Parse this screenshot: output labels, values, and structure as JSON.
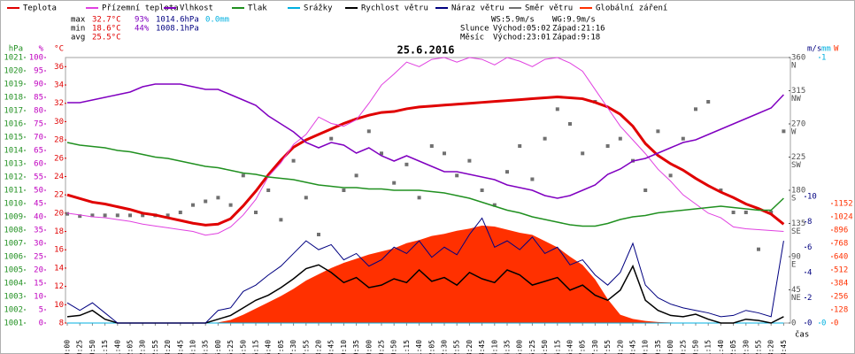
{
  "chart_data": {
    "type": "line",
    "title": "25.6.2016",
    "x_label": "čas",
    "categories": [
      "00:00",
      "00:25",
      "00:50",
      "01:15",
      "01:40",
      "02:05",
      "02:30",
      "02:55",
      "03:20",
      "03:45",
      "04:10",
      "04:35",
      "05:00",
      "05:25",
      "05:50",
      "06:15",
      "06:40",
      "07:05",
      "07:30",
      "07:55",
      "08:20",
      "08:45",
      "09:10",
      "09:35",
      "10:00",
      "10:25",
      "10:50",
      "11:15",
      "11:40",
      "12:05",
      "12:30",
      "12:55",
      "13:20",
      "13:45",
      "14:10",
      "14:35",
      "15:00",
      "15:25",
      "15:50",
      "16:15",
      "16:40",
      "17:05",
      "17:30",
      "17:55",
      "18:20",
      "18:45",
      "19:10",
      "19:35",
      "20:00",
      "20:25",
      "20:50",
      "21:15",
      "21:40",
      "22:05",
      "22:30",
      "22:55",
      "23:20",
      "23:45"
    ],
    "stats": {
      "max": {
        "label": "max",
        "temp": "32.7°C",
        "hum": "93%",
        "pres": "1014.6hPa",
        "rain": "0.0mm"
      },
      "min": {
        "label": "min",
        "temp": "18.6°C",
        "hum": "44%",
        "pres": "1008.1hPa"
      },
      "avg": {
        "label": "avg",
        "temp": "25.5°C"
      },
      "ws": "WS:5.9m/s",
      "wg": "WG:9.9m/s",
      "sun": {
        "label": "Slunce",
        "rise": "Východ:05:02",
        "set": "Západ:21:16"
      },
      "moon": {
        "label": "Měsíc",
        "rise": "Východ:23:01",
        "set": "Západ:9:18"
      }
    },
    "axes": {
      "hpa": {
        "label": "hPa",
        "lim": [
          1001,
          1021
        ],
        "ticks": [
          1001,
          1002,
          1003,
          1004,
          1005,
          1006,
          1007,
          1008,
          1009,
          1010,
          1011,
          1012,
          1013,
          1014,
          1015,
          1016,
          1017,
          1018,
          1019,
          1020,
          1021
        ],
        "color": "#209020"
      },
      "pct": {
        "label": "%",
        "lim": [
          0,
          100
        ],
        "ticks": [
          0,
          5,
          10,
          15,
          20,
          25,
          30,
          35,
          40,
          45,
          50,
          55,
          60,
          65,
          70,
          75,
          80,
          85,
          90,
          95,
          100
        ],
        "color": "#c000c0"
      },
      "temp": {
        "label": "°C",
        "lim": [
          8,
          37
        ],
        "ticks": [
          8,
          10,
          12,
          14,
          16,
          18,
          20,
          22,
          24,
          26,
          28,
          30,
          32,
          34,
          36
        ],
        "color": "#e00000"
      },
      "dir": {
        "lim": [
          0,
          360
        ],
        "ticks": [
          0,
          45,
          90,
          135,
          180,
          225,
          270,
          315,
          360
        ],
        "color": "#505050",
        "names": [
          {
            "value": 45,
            "label": "NE"
          },
          {
            "value": 90,
            "label": "E"
          },
          {
            "value": 135,
            "label": "SE"
          },
          {
            "value": 180,
            "label": "S"
          },
          {
            "value": 225,
            "label": "SW"
          },
          {
            "value": 270,
            "label": "W"
          },
          {
            "value": 315,
            "label": "NW"
          },
          {
            "value": 360,
            "label": "N"
          }
        ]
      },
      "ms": {
        "label": "m/s",
        "lim": [
          0,
          21
        ],
        "ticks": [
          0,
          2,
          4,
          6,
          8,
          10
        ],
        "color": "#000080"
      },
      "mm": {
        "label": "mm",
        "lim": [
          0,
          1
        ],
        "ticks": [
          0,
          1
        ],
        "color": "#00b0e0"
      },
      "w": {
        "label": "W",
        "lim": [
          0,
          2560
        ],
        "ticks": [
          0,
          128,
          256,
          384,
          512,
          640,
          768,
          896,
          1024,
          1152
        ],
        "color": "#ff3000"
      }
    },
    "series": [
      {
        "name": "Teplota",
        "color": "#e00000",
        "axis": "temp",
        "kind": "line",
        "width": 3,
        "values": [
          22.0,
          21.6,
          21.2,
          21.0,
          20.7,
          20.4,
          20.0,
          19.8,
          19.5,
          19.2,
          18.9,
          18.7,
          18.8,
          19.4,
          20.8,
          22.4,
          24.2,
          25.8,
          27.2,
          28.0,
          28.6,
          29.2,
          29.8,
          30.3,
          30.7,
          31.0,
          31.1,
          31.4,
          31.6,
          31.7,
          31.8,
          31.9,
          32.0,
          32.1,
          32.2,
          32.3,
          32.4,
          32.5,
          32.6,
          32.7,
          32.6,
          32.5,
          32.1,
          31.6,
          30.8,
          29.5,
          27.6,
          26.3,
          25.4,
          24.7,
          23.8,
          23.0,
          22.3,
          21.7,
          21.0,
          20.5,
          19.9,
          18.8
        ]
      },
      {
        "name": "Přízemní teplota",
        "color": "#e040e0",
        "axis": "temp",
        "kind": "line",
        "width": 1,
        "values": [
          20.0,
          19.8,
          19.6,
          19.5,
          19.3,
          19.1,
          18.8,
          18.6,
          18.4,
          18.2,
          18.0,
          17.6,
          17.8,
          18.5,
          19.8,
          21.5,
          24.0,
          25.5,
          27.5,
          28.6,
          30.5,
          29.8,
          29.5,
          30.2,
          32.0,
          34.0,
          35.2,
          36.5,
          36.0,
          36.8,
          37.0,
          36.5,
          37.0,
          36.8,
          36.2,
          37.0,
          36.6,
          36.0,
          36.8,
          37.0,
          36.4,
          35.5,
          33.5,
          31.5,
          29.5,
          28.0,
          26.5,
          24.8,
          23.5,
          22.0,
          21.0,
          20.0,
          19.5,
          18.5,
          18.3,
          18.2,
          18.1,
          18.0
        ]
      },
      {
        "name": "Vlhkost",
        "color": "#8000c0",
        "axis": "pct",
        "kind": "line",
        "width": 1.5,
        "values": [
          83,
          83,
          84,
          85,
          86,
          87,
          89,
          90,
          90,
          90,
          89,
          88,
          88,
          86,
          84,
          82,
          78,
          75,
          72,
          68,
          66,
          68,
          67,
          64,
          66,
          63,
          61,
          63,
          61,
          59,
          57,
          57,
          56,
          55,
          54,
          52,
          51,
          50,
          48,
          47,
          48,
          50,
          52,
          56,
          58,
          61,
          62,
          64,
          66,
          68,
          69,
          71,
          73,
          75,
          77,
          79,
          81,
          86
        ]
      },
      {
        "name": "Tlak",
        "color": "#209020",
        "axis": "hpa",
        "kind": "line",
        "width": 1.5,
        "values": [
          1014.6,
          1014.4,
          1014.3,
          1014.2,
          1014.0,
          1013.9,
          1013.7,
          1013.5,
          1013.4,
          1013.2,
          1013.0,
          1012.8,
          1012.7,
          1012.5,
          1012.3,
          1012.2,
          1012.0,
          1011.9,
          1011.8,
          1011.6,
          1011.4,
          1011.3,
          1011.2,
          1011.2,
          1011.1,
          1011.1,
          1011.0,
          1011.0,
          1011.0,
          1010.9,
          1010.8,
          1010.6,
          1010.4,
          1010.1,
          1009.8,
          1009.5,
          1009.3,
          1009.0,
          1008.8,
          1008.6,
          1008.4,
          1008.3,
          1008.3,
          1008.5,
          1008.8,
          1009.0,
          1009.1,
          1009.3,
          1009.4,
          1009.5,
          1009.6,
          1009.7,
          1009.8,
          1009.7,
          1009.6,
          1009.5,
          1009.5,
          1010.4
        ]
      },
      {
        "name": "Srážky",
        "color": "#00b0e0",
        "axis": "mm",
        "kind": "line",
        "width": 1,
        "values": [
          0,
          0,
          0,
          0,
          0,
          0,
          0,
          0,
          0,
          0,
          0,
          0,
          0,
          0,
          0,
          0,
          0,
          0,
          0,
          0,
          0,
          0,
          0,
          0,
          0,
          0,
          0,
          0,
          0,
          0,
          0,
          0,
          0,
          0,
          0,
          0,
          0,
          0,
          0,
          0,
          0,
          0,
          0,
          0,
          0,
          0,
          0,
          0,
          0,
          0,
          0,
          0,
          0,
          0,
          0,
          0,
          0,
          0
        ]
      },
      {
        "name": "Rychlost větru",
        "color": "#000000",
        "axis": "ms",
        "kind": "line",
        "width": 1.5,
        "values": [
          0.5,
          0.6,
          1.0,
          0.3,
          0,
          0,
          0,
          0,
          0,
          0,
          0,
          0,
          0.3,
          0.6,
          1.2,
          1.8,
          2.2,
          2.8,
          3.5,
          4.3,
          4.6,
          4.0,
          3.2,
          3.6,
          2.8,
          3.0,
          3.5,
          3.2,
          4.2,
          3.3,
          3.6,
          3.0,
          4.0,
          3.5,
          3.2,
          4.2,
          3.8,
          3.0,
          3.3,
          3.6,
          2.6,
          3.0,
          2.2,
          1.8,
          2.6,
          4.5,
          1.8,
          1.0,
          0.6,
          0.5,
          0.7,
          0.3,
          0,
          0,
          0.3,
          0.2,
          0,
          0.5
        ]
      },
      {
        "name": "Náraz větru",
        "color": "#000080",
        "axis": "ms",
        "kind": "line",
        "width": 1,
        "values": [
          1.6,
          1.0,
          1.6,
          0.8,
          0,
          0,
          0,
          0,
          0,
          0,
          0,
          0,
          1.0,
          1.2,
          2.5,
          3.0,
          3.8,
          4.5,
          5.5,
          6.5,
          5.8,
          6.2,
          5.0,
          5.5,
          4.5,
          5.0,
          6.0,
          5.5,
          6.5,
          5.2,
          6.0,
          5.4,
          7.0,
          8.3,
          6.0,
          6.5,
          5.8,
          6.8,
          5.5,
          6.0,
          4.6,
          5.0,
          3.8,
          3.0,
          4.0,
          6.3,
          3.0,
          2.0,
          1.5,
          1.2,
          1.0,
          0.8,
          0.5,
          0.6,
          1.0,
          0.8,
          0.5,
          6.5
        ]
      },
      {
        "name": "Směr větru",
        "color": "#707070",
        "axis": "dir",
        "kind": "points",
        "values": [
          148,
          145,
          146,
          146,
          146,
          146,
          146,
          146,
          146,
          150,
          160,
          165,
          170,
          160,
          200,
          150,
          180,
          140,
          220,
          170,
          120,
          250,
          180,
          200,
          260,
          230,
          190,
          215,
          170,
          240,
          230,
          200,
          220,
          180,
          160,
          205,
          240,
          195,
          250,
          290,
          270,
          230,
          300,
          240,
          250,
          220,
          180,
          260,
          200,
          250,
          290,
          300,
          180,
          150,
          150,
          100,
          150,
          260
        ]
      },
      {
        "name": "Globální záření",
        "color": "#ff3000",
        "axis": "w",
        "kind": "area",
        "values": [
          0,
          0,
          0,
          0,
          0,
          0,
          0,
          0,
          0,
          0,
          0,
          0,
          5,
          30,
          80,
          140,
          200,
          260,
          330,
          410,
          470,
          530,
          580,
          620,
          660,
          690,
          720,
          770,
          800,
          840,
          860,
          890,
          910,
          940,
          930,
          900,
          870,
          850,
          790,
          730,
          640,
          560,
          420,
          230,
          80,
          40,
          20,
          10,
          5,
          0,
          0,
          0,
          0,
          0,
          0,
          0,
          0,
          0
        ]
      }
    ]
  }
}
